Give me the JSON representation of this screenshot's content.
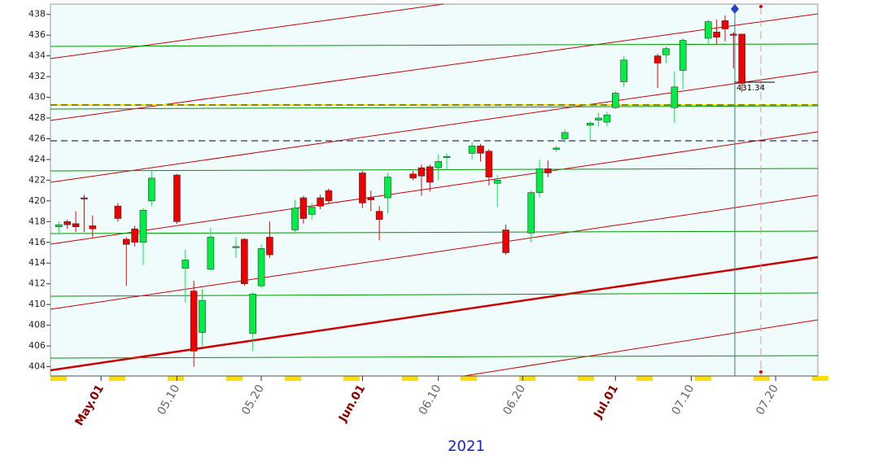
{
  "chart_data": {
    "type": "candlestick",
    "x": [
      "04.26",
      "04.27",
      "04.28",
      "04.29",
      "04.30",
      "05.03",
      "05.04",
      "05.05",
      "05.06",
      "05.07",
      "05.10",
      "05.11",
      "05.12",
      "05.13",
      "05.14",
      "05.17",
      "05.18",
      "05.19",
      "05.20",
      "05.21",
      "05.24",
      "05.25",
      "05.26",
      "05.27",
      "05.28",
      "06.01",
      "06.02",
      "06.03",
      "06.04",
      "06.07",
      "06.08",
      "06.09",
      "06.10",
      "06.11",
      "06.14",
      "06.15",
      "06.16",
      "06.17",
      "06.18",
      "06.21",
      "06.22",
      "06.23",
      "06.24",
      "06.25",
      "06.28",
      "06.29",
      "06.30",
      "07.01",
      "07.02",
      "07.06",
      "07.07",
      "07.08",
      "07.09",
      "07.12",
      "07.13",
      "07.14",
      "07.15",
      "07.16"
    ],
    "open": [
      417.5,
      418.0,
      417.8,
      420.3,
      417.6,
      419.5,
      416.3,
      417.3,
      416.0,
      420.0,
      422.5,
      413.5,
      411.3,
      407.3,
      413.4,
      415.5,
      416.3,
      407.2,
      411.8,
      416.5,
      417.2,
      420.3,
      418.7,
      420.3,
      421.0,
      422.7,
      420.3,
      419.0,
      420.3,
      422.6,
      423.2,
      423.3,
      423.2,
      424.3,
      424.6,
      425.3,
      424.8,
      421.7,
      417.2,
      416.9,
      420.8,
      423.1,
      425.0,
      426.0,
      427.3,
      427.8,
      427.6,
      429.0,
      431.5,
      434.0,
      434.1,
      429.0,
      432.6,
      435.7,
      436.3,
      437.4,
      436.1,
      436.1
    ],
    "high": [
      418.0,
      418.2,
      419.0,
      420.6,
      418.6,
      419.8,
      416.5,
      417.6,
      419.3,
      423.0,
      422.6,
      415.3,
      412.3,
      411.5,
      417.4,
      416.5,
      416.4,
      411.2,
      415.8,
      418.0,
      420.1,
      420.5,
      419.8,
      420.6,
      421.2,
      422.9,
      421.0,
      419.5,
      422.7,
      422.9,
      423.5,
      423.5,
      424.5,
      424.6,
      425.7,
      425.5,
      425.0,
      422.5,
      417.7,
      421.0,
      424.0,
      423.9,
      425.3,
      426.9,
      427.7,
      428.5,
      428.6,
      430.6,
      434.0,
      434.2,
      434.9,
      432.5,
      435.7,
      437.5,
      437.5,
      437.9,
      436.3,
      436.1
    ],
    "low": [
      416.9,
      417.3,
      417.0,
      417.0,
      416.5,
      418.0,
      411.8,
      415.6,
      413.8,
      419.5,
      417.8,
      410.2,
      404.0,
      406.0,
      413.3,
      414.5,
      411.8,
      405.5,
      411.6,
      414.5,
      417.0,
      417.8,
      418.2,
      419.2,
      419.8,
      419.3,
      419.0,
      416.2,
      418.8,
      422.0,
      420.5,
      420.9,
      422.0,
      423.0,
      424.0,
      423.8,
      421.5,
      419.4,
      414.8,
      416.0,
      420.3,
      422.3,
      424.7,
      425.6,
      425.9,
      427.2,
      427.2,
      428.9,
      431.0,
      430.9,
      433.3,
      427.5,
      430.8,
      435.2,
      435.1,
      435.4,
      432.8,
      430.5
    ],
    "close": [
      417.7,
      417.7,
      417.5,
      420.2,
      417.3,
      418.3,
      415.8,
      416.0,
      419.1,
      422.2,
      418.0,
      414.3,
      405.5,
      410.4,
      416.5,
      415.6,
      412.0,
      411.0,
      415.4,
      414.8,
      419.3,
      418.3,
      419.4,
      419.5,
      420.0,
      419.8,
      420.1,
      418.2,
      422.3,
      422.2,
      422.4,
      421.8,
      423.8,
      424.3,
      425.3,
      424.6,
      422.3,
      422.0,
      415.0,
      420.8,
      423.1,
      422.7,
      425.1,
      426.6,
      427.5,
      428.0,
      428.3,
      430.4,
      433.6,
      433.3,
      434.7,
      431.0,
      435.5,
      437.3,
      435.8,
      436.6,
      436.0,
      431.34
    ],
    "up_color": "#00ee44",
    "down_color": "#ee0000",
    "xlim": [
      "04.25",
      "07.25"
    ],
    "xticks": [
      {
        "value": "05.01",
        "label": "May.01"
      },
      "05.10",
      "05.20",
      {
        "value": "06.01",
        "label": "Jun.01"
      },
      "06.10",
      "06.20",
      {
        "value": "07.01",
        "label": "Jul.01"
      },
      "07.10",
      "07.20"
    ],
    "x_label": "2021",
    "ylim": [
      403.1,
      439.0
    ],
    "yticks": [
      404,
      406,
      408,
      410,
      412,
      414,
      416,
      418,
      420,
      422,
      424,
      426,
      428,
      430,
      432,
      434,
      436,
      438
    ],
    "annotation": "431.34"
  }
}
